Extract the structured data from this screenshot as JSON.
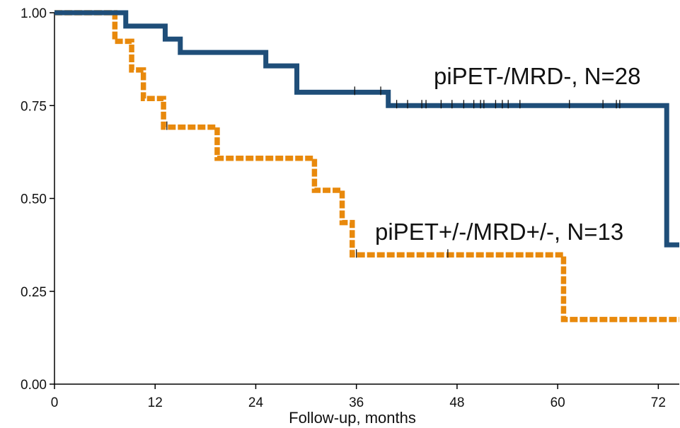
{
  "chart_data": {
    "type": "line",
    "subtype": "kaplan-meier-step",
    "title": "",
    "xlabel": "Follow-up, months",
    "ylabel": "",
    "xlim": [
      0,
      74.5
    ],
    "ylim": [
      0,
      1
    ],
    "xticks": [
      "0",
      "12",
      "24",
      "36",
      "48",
      "60",
      "72"
    ],
    "yticks": [
      "0.00",
      "0.25",
      "0.50",
      "0.75",
      "1.00"
    ],
    "grid": false,
    "series": [
      {
        "name": "piPET-/MRD-, N=28",
        "color": "#1F4E79",
        "line_style": "solid",
        "steps": [
          {
            "x": 0,
            "y": 1.0
          },
          {
            "x": 8.5,
            "y": 0.964
          },
          {
            "x": 13.2,
            "y": 0.929
          },
          {
            "x": 15.0,
            "y": 0.893
          },
          {
            "x": 25.2,
            "y": 0.857
          },
          {
            "x": 28.9,
            "y": 0.786
          },
          {
            "x": 39.8,
            "y": 0.75
          },
          {
            "x": 73.0,
            "y": 0.375
          }
        ],
        "end_x": 74.5,
        "censor_x": [
          35.8,
          38.9,
          40.8,
          42.1,
          43.8,
          44.3,
          46.1,
          47.4,
          48.8,
          50.0,
          50.8,
          51.2,
          52.6,
          53.4,
          54.1,
          55.5,
          61.4,
          65.4,
          67.0,
          67.4
        ]
      },
      {
        "name": "piPET+/-/MRD+/-, N=13",
        "color": "#E8890C",
        "line_style": "dashed",
        "steps": [
          {
            "x": 0,
            "y": 1.0
          },
          {
            "x": 7.2,
            "y": 0.923
          },
          {
            "x": 9.2,
            "y": 0.846
          },
          {
            "x": 10.6,
            "y": 0.769
          },
          {
            "x": 13.0,
            "y": 0.692
          },
          {
            "x": 19.4,
            "y": 0.608
          },
          {
            "x": 31.0,
            "y": 0.522
          },
          {
            "x": 34.3,
            "y": 0.435
          },
          {
            "x": 35.5,
            "y": 0.348
          },
          {
            "x": 60.7,
            "y": 0.174
          }
        ],
        "end_x": 74.5,
        "censor_x": [
          13.4,
          36.0,
          46.9
        ]
      }
    ]
  }
}
